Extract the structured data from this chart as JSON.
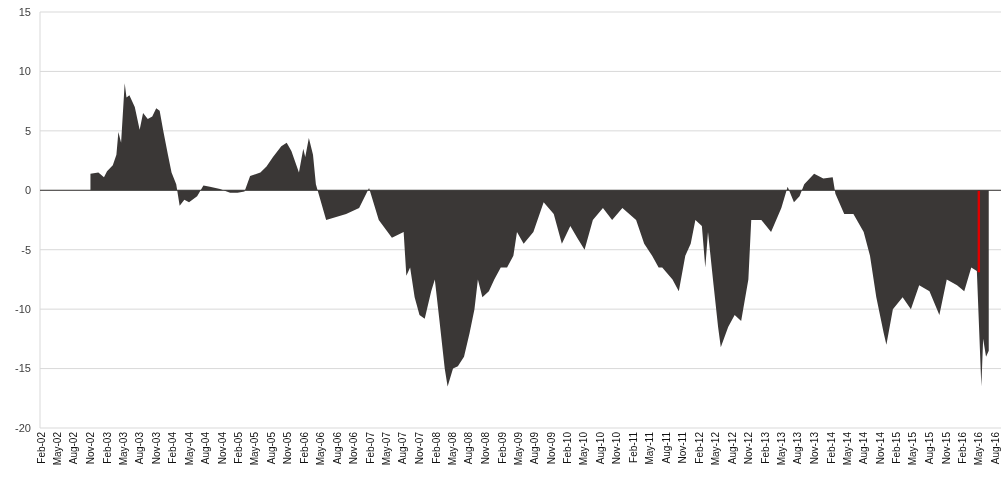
{
  "chart_data": {
    "type": "area",
    "xlim": [
      "2002-01-25",
      "2016-09-01"
    ],
    "ylim": [
      -20,
      15
    ],
    "yticks": [
      -20,
      -15,
      -10,
      -5,
      0,
      5,
      10,
      15
    ],
    "grid": "y",
    "xticks": [
      {
        "value": "2002-02",
        "label": "Feb-02"
      },
      {
        "value": "2002-05",
        "label": "May-02"
      },
      {
        "value": "2002-08",
        "label": "Aug-02"
      },
      {
        "value": "2002-11",
        "label": "Nov-02"
      },
      {
        "value": "2003-02",
        "label": "Feb-03"
      },
      {
        "value": "2003-05",
        "label": "May-03"
      },
      {
        "value": "2003-08",
        "label": "Aug-03"
      },
      {
        "value": "2003-11",
        "label": "Nov-03"
      },
      {
        "value": "2004-02",
        "label": "Feb-04"
      },
      {
        "value": "2004-05",
        "label": "May-04"
      },
      {
        "value": "2004-08",
        "label": "Aug-04"
      },
      {
        "value": "2004-11",
        "label": "Nov-04"
      },
      {
        "value": "2005-02",
        "label": "Feb-05"
      },
      {
        "value": "2005-05",
        "label": "May-05"
      },
      {
        "value": "2005-08",
        "label": "Aug-05"
      },
      {
        "value": "2005-11",
        "label": "Nov-05"
      },
      {
        "value": "2006-02",
        "label": "Feb-06"
      },
      {
        "value": "2006-05",
        "label": "May-06"
      },
      {
        "value": "2006-08",
        "label": "Aug-06"
      },
      {
        "value": "2006-11",
        "label": "Nov-06"
      },
      {
        "value": "2007-02",
        "label": "Feb-07"
      },
      {
        "value": "2007-05",
        "label": "May-07"
      },
      {
        "value": "2007-08",
        "label": "Aug-07"
      },
      {
        "value": "2007-11",
        "label": "Nov-07"
      },
      {
        "value": "2008-02",
        "label": "Feb-08"
      },
      {
        "value": "2008-05",
        "label": "May-08"
      },
      {
        "value": "2008-08",
        "label": "Aug-08"
      },
      {
        "value": "2008-11",
        "label": "Nov-08"
      },
      {
        "value": "2009-02",
        "label": "Feb-09"
      },
      {
        "value": "2009-05",
        "label": "May-09"
      },
      {
        "value": "2009-08",
        "label": "Aug-09"
      },
      {
        "value": "2009-11",
        "label": "Nov-09"
      },
      {
        "value": "2010-02",
        "label": "Feb-10"
      },
      {
        "value": "2010-05",
        "label": "May-10"
      },
      {
        "value": "2010-08",
        "label": "Aug-10"
      },
      {
        "value": "2010-11",
        "label": "Nov-10"
      },
      {
        "value": "2011-02",
        "label": "Feb-11"
      },
      {
        "value": "2011-05",
        "label": "May-11"
      },
      {
        "value": "2011-08",
        "label": "Aug-11"
      },
      {
        "value": "2011-11",
        "label": "Nov-11"
      },
      {
        "value": "2012-02",
        "label": "Feb-12"
      },
      {
        "value": "2012-05",
        "label": "May-12"
      },
      {
        "value": "2012-08",
        "label": "Aug-12"
      },
      {
        "value": "2012-11",
        "label": "Nov-12"
      },
      {
        "value": "2013-02",
        "label": "Feb-13"
      },
      {
        "value": "2013-05",
        "label": "May-13"
      },
      {
        "value": "2013-08",
        "label": "Aug-13"
      },
      {
        "value": "2013-11",
        "label": "Nov-13"
      },
      {
        "value": "2014-02",
        "label": "Feb-14"
      },
      {
        "value": "2014-05",
        "label": "May-14"
      },
      {
        "value": "2014-08",
        "label": "Aug-14"
      },
      {
        "value": "2014-11",
        "label": "Nov-14"
      },
      {
        "value": "2015-02",
        "label": "Feb-15"
      },
      {
        "value": "2015-05",
        "label": "May-15"
      },
      {
        "value": "2015-08",
        "label": "Aug-15"
      },
      {
        "value": "2015-11",
        "label": "Nov-15"
      },
      {
        "value": "2016-02",
        "label": "Feb-16"
      },
      {
        "value": "2016-05",
        "label": "May-16"
      },
      {
        "value": "2016-08",
        "label": "Aug-16"
      }
    ],
    "series": [
      {
        "color": "#3a3736",
        "x": [
          "2002-11-01",
          "2002-12-15",
          "2003-01-15",
          "2003-02-01",
          "2003-03-05",
          "2003-03-25",
          "2003-04-05",
          "2003-04-20",
          "2003-05-10",
          "2003-05-20",
          "2003-06-05",
          "2003-07-05",
          "2003-08-01",
          "2003-08-20",
          "2003-09-15",
          "2003-10-10",
          "2003-11-01",
          "2003-11-20",
          "2003-12-10",
          "2004-01-05",
          "2004-01-25",
          "2004-02-20",
          "2004-03-10",
          "2004-04-05",
          "2004-05-01",
          "2004-06-15",
          "2004-07-20",
          "2004-08-25",
          "2004-10-20",
          "2004-12-15",
          "2005-01-25",
          "2005-03-05",
          "2005-04-05",
          "2005-06-01",
          "2005-07-05",
          "2005-08-10",
          "2005-09-25",
          "2005-10-25",
          "2005-11-20",
          "2006-01-01",
          "2006-01-25",
          "2006-02-05",
          "2006-02-25",
          "2006-03-20",
          "2006-04-05",
          "2006-06-01",
          "2006-09-20",
          "2006-12-01",
          "2007-01-25",
          "2007-03-20",
          "2007-06-01",
          "2007-08-05",
          "2007-08-20",
          "2007-09-10",
          "2007-10-05",
          "2007-11-01",
          "2007-11-30",
          "2008-01-05",
          "2008-01-25",
          "2008-02-20",
          "2008-03-20",
          "2008-04-05",
          "2008-05-05",
          "2008-06-01",
          "2008-07-05",
          "2008-08-05",
          "2008-09-01",
          "2008-09-20",
          "2008-10-15",
          "2008-11-20",
          "2008-12-20",
          "2009-01-25",
          "2009-03-01",
          "2009-04-05",
          "2009-04-25",
          "2009-06-01",
          "2009-07-25",
          "2009-09-20",
          "2009-11-15",
          "2009-12-30",
          "2010-02-15",
          "2010-03-25",
          "2010-05-05",
          "2010-06-20",
          "2010-08-15",
          "2010-10-05",
          "2010-12-01",
          "2011-02-15",
          "2011-04-01",
          "2011-05-15",
          "2011-06-20",
          "2011-07-10",
          "2011-09-05",
          "2011-10-10",
          "2011-11-15",
          "2011-12-15",
          "2012-01-10",
          "2012-02-15",
          "2012-03-05",
          "2012-03-20",
          "2012-04-20",
          "2012-05-15",
          "2012-05-30",
          "2012-07-10",
          "2012-08-15",
          "2012-09-20",
          "2012-10-30",
          "2012-11-15",
          "2013-01-10",
          "2013-03-05",
          "2013-05-01",
          "2013-06-05",
          "2013-07-10",
          "2013-08-10",
          "2013-09-05",
          "2013-10-30",
          "2013-12-20",
          "2014-02-10",
          "2014-02-25",
          "2014-04-15",
          "2014-06-05",
          "2014-08-01",
          "2014-09-05",
          "2014-10-10",
          "2014-11-20",
          "2014-12-05",
          "2015-01-10",
          "2015-03-05",
          "2015-04-20",
          "2015-06-05",
          "2015-08-01",
          "2015-09-25",
          "2015-11-05",
          "2016-01-01",
          "2016-02-10",
          "2016-03-20",
          "2016-04-20",
          "2016-05-15",
          "2016-05-25",
          "2016-06-10",
          "2016-06-25"
        ],
        "values": [
          1.4,
          1.5,
          1.1,
          1.6,
          2.1,
          3.0,
          4.9,
          4.0,
          9.0,
          7.8,
          8.0,
          7.0,
          5.1,
          6.5,
          6.0,
          6.2,
          6.9,
          6.7,
          5.0,
          3.0,
          1.5,
          0.5,
          -1.3,
          -0.8,
          -1.0,
          -0.5,
          0.4,
          0.3,
          0.1,
          -0.2,
          -0.2,
          -0.1,
          1.2,
          1.5,
          2.0,
          2.8,
          3.7,
          4.0,
          3.3,
          1.5,
          3.5,
          2.8,
          4.4,
          3.0,
          0.5,
          -2.5,
          -2.0,
          -1.5,
          0.2,
          -2.5,
          -4.0,
          -3.5,
          -7.2,
          -6.5,
          -9.0,
          -10.5,
          -10.8,
          -8.5,
          -7.5,
          -11.0,
          -15.0,
          -16.5,
          -15.0,
          -14.8,
          -14.0,
          -12.0,
          -10.0,
          -7.5,
          -9.0,
          -8.5,
          -7.5,
          -6.5,
          -6.5,
          -5.5,
          -3.5,
          -4.5,
          -3.5,
          -1.0,
          -2.0,
          -4.5,
          -3.0,
          -4.0,
          -5.0,
          -2.5,
          -1.5,
          -2.5,
          -1.5,
          -2.5,
          -4.5,
          -5.5,
          -6.5,
          -6.5,
          -7.5,
          -8.5,
          -5.5,
          -4.5,
          -2.5,
          -3.0,
          -6.5,
          -3.5,
          -8.0,
          -11.5,
          -13.2,
          -11.5,
          -10.5,
          -11.0,
          -7.5,
          -2.5,
          -2.5,
          -3.5,
          -1.5,
          0.3,
          -1.0,
          -0.5,
          0.5,
          1.4,
          1.0,
          1.1,
          -0.3,
          -2.0,
          -2.0,
          -3.5,
          -5.5,
          -9.0,
          -12.0,
          -13.0,
          -10.0,
          -9.0,
          -10.0,
          -8.0,
          -8.5,
          -10.5,
          -7.5,
          -8.0,
          -8.5,
          -6.5,
          -6.8,
          -16.5,
          -12.5,
          -14.0,
          -13.5
        ]
      },
      {
        "type": "bar",
        "color": "#e00000",
        "x": [
          "2016-05-01"
        ],
        "values": [
          -6.9
        ]
      }
    ]
  }
}
